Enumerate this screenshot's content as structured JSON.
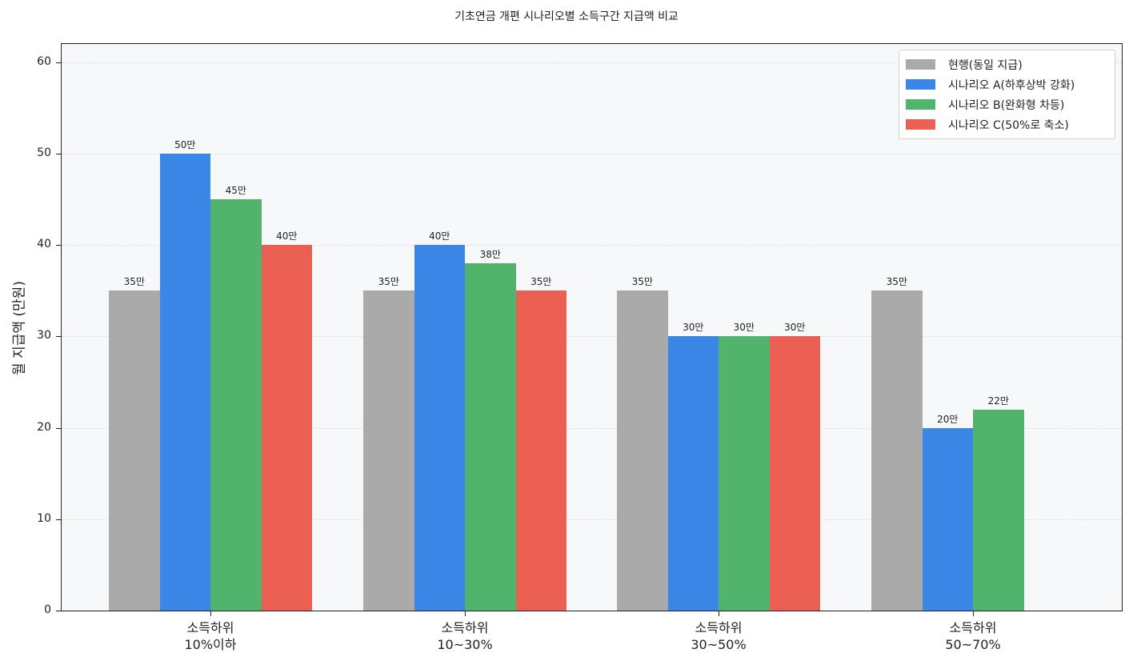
{
  "chart_data": {
    "type": "bar",
    "title": "기초연금 개편 시나리오별 소득구간 지급액 비교",
    "xlabel": "",
    "ylabel": "월 지급액 (만원)",
    "ylim": [
      0,
      62
    ],
    "yticks": [
      0,
      10,
      20,
      30,
      40,
      50,
      60
    ],
    "grid": "y-dashed",
    "legend_position": "upper right",
    "value_label_suffix": "만",
    "categories": [
      "소득하위\n10%이하",
      "소득하위\n10~30%",
      "소득하위\n30~50%",
      "소득하위\n50~70%"
    ],
    "series": [
      {
        "name": "현행(동일 지급)",
        "color": "#aaaaaa",
        "values": [
          35,
          35,
          35,
          35
        ]
      },
      {
        "name": "시나리오 A(하후상박 강화)",
        "color": "#3b87e8",
        "values": [
          50,
          40,
          30,
          20
        ]
      },
      {
        "name": "시나리오 B(완화형 차등)",
        "color": "#51b36c",
        "values": [
          45,
          38,
          30,
          22
        ]
      },
      {
        "name": "시나리오 C(50%로 축소)",
        "color": "#ec5f53",
        "values": [
          40,
          35,
          30,
          null
        ]
      }
    ]
  }
}
